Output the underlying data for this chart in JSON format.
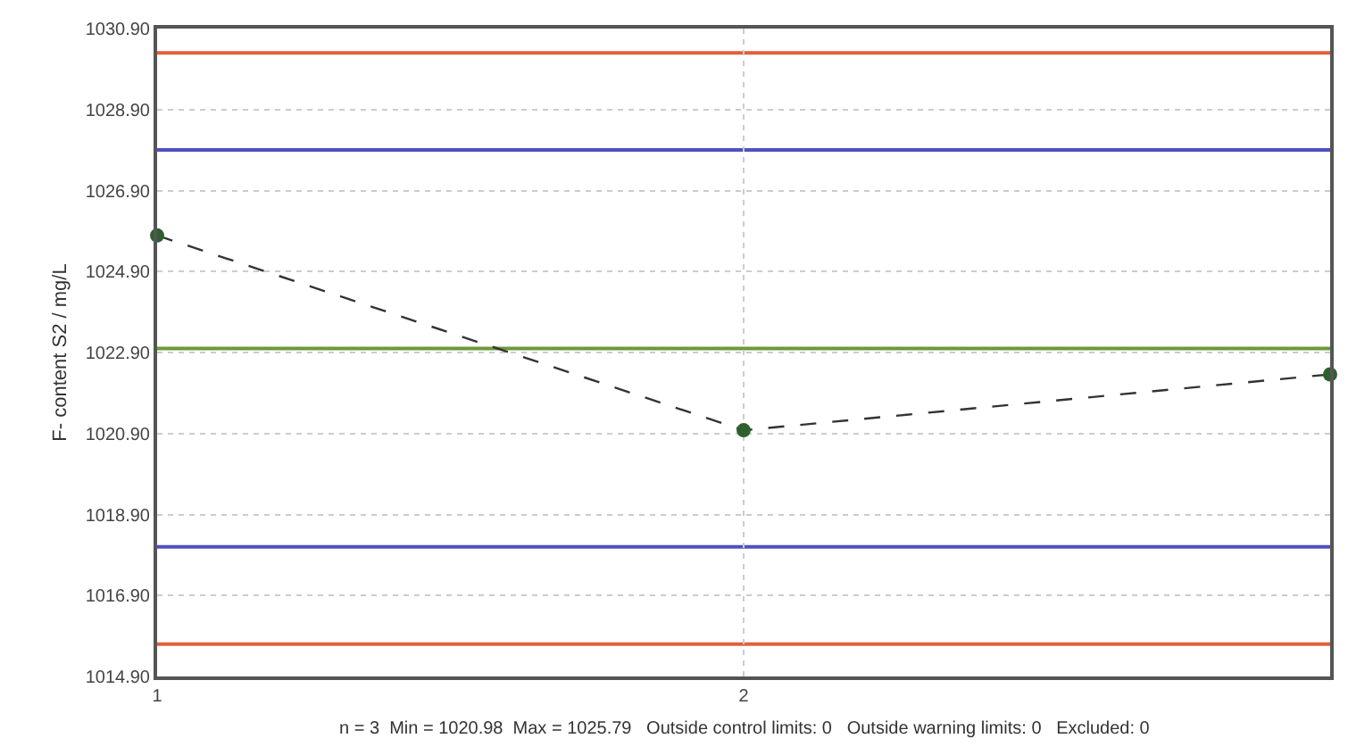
{
  "chart_data": {
    "type": "line",
    "ylabel": "F- content S2 / mg/L",
    "x": [
      1,
      2,
      3
    ],
    "series": [
      {
        "color": "#2f5f2f",
        "values": [
          1025.79,
          1020.98,
          1022.36
        ]
      }
    ],
    "xlim": [
      1,
      3
    ],
    "xticks": [
      1,
      2
    ],
    "ylim": [
      1014.9,
      1030.9
    ],
    "yticks": [
      {
        "value": 1014.9,
        "label": "1014.90"
      },
      {
        "value": 1016.9,
        "label": "1016.90"
      },
      {
        "value": 1018.9,
        "label": "1018.90"
      },
      {
        "value": 1020.9,
        "label": "1020.90"
      },
      {
        "value": 1022.9,
        "label": "1022.90"
      },
      {
        "value": 1024.9,
        "label": "1024.90"
      },
      {
        "value": 1026.9,
        "label": "1026.90"
      },
      {
        "value": 1028.9,
        "label": "1028.90"
      },
      {
        "value": 1030.9,
        "label": "1030.90"
      }
    ],
    "ref_lines": [
      {
        "axis": "y",
        "value": 1030.3,
        "color": "#e0603a"
      },
      {
        "axis": "y",
        "value": 1027.9,
        "color": "#5050c0"
      },
      {
        "axis": "y",
        "value": 1023.0,
        "color": "#6a9a3a"
      },
      {
        "axis": "y",
        "value": 1018.1,
        "color": "#5050c0"
      },
      {
        "axis": "y",
        "value": 1015.7,
        "color": "#e0603a"
      }
    ],
    "annotations": [
      "n = 3  Min = 1020.98  Max = 1025.79   Outside control limits: 0   Outside warning limits: 0   Excluded: 0"
    ],
    "grid": true,
    "marker": "circle",
    "line_style": "dashed"
  }
}
